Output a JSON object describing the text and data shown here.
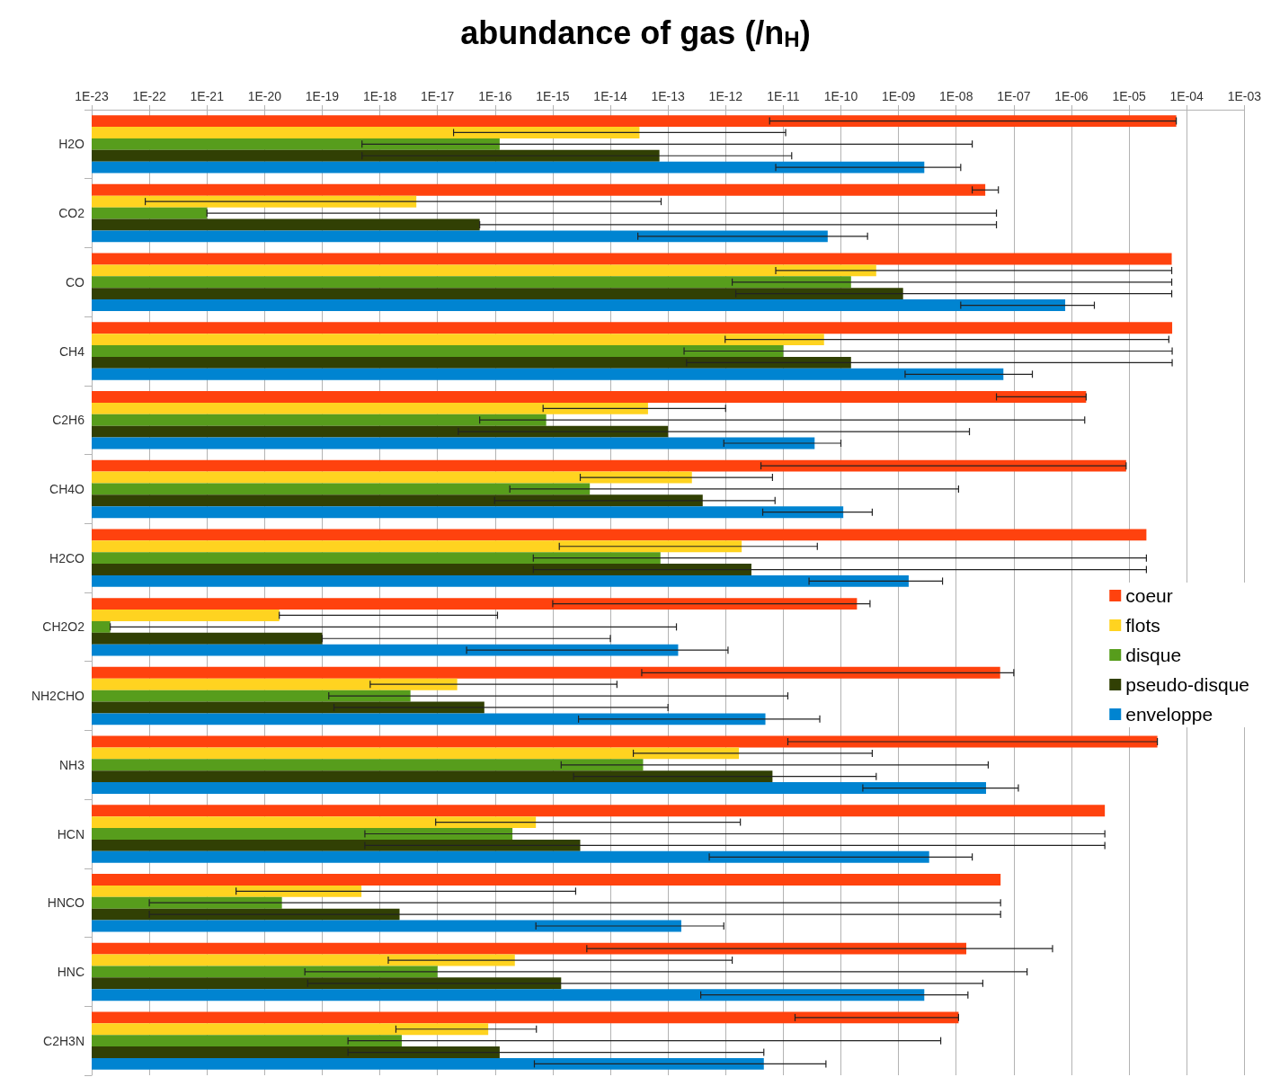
{
  "chart_data": {
    "type": "bar",
    "orientation": "horizontal",
    "title": "abundance of gas (/n$_{H}$)",
    "categories": [
      "H2O",
      "CO2",
      "CO",
      "CH4",
      "C2H6",
      "CH4O",
      "H2CO",
      "CH2O2",
      "NH2CHO",
      "NH3",
      "HCN",
      "HNCO",
      "HNC",
      "C2H3N"
    ],
    "log": "x",
    "grid": "x",
    "legend": "right",
    "xlim": [
      1e-23,
      0.001
    ],
    "xticks": [
      {
        "value": 1e-23,
        "label": "1E-23"
      },
      {
        "value": 1e-22,
        "label": "1E-22"
      },
      {
        "value": 1e-21,
        "label": "1E-21"
      },
      {
        "value": 1e-20,
        "label": "1E-20"
      },
      {
        "value": 1e-19,
        "label": "1E-19"
      },
      {
        "value": 1e-18,
        "label": "1E-18"
      },
      {
        "value": 1e-17,
        "label": "1E-17"
      },
      {
        "value": 1e-16,
        "label": "1E-16"
      },
      {
        "value": 1e-15,
        "label": "1E-15"
      },
      {
        "value": 1e-14,
        "label": "1E-14"
      },
      {
        "value": 1e-13,
        "label": "1E-13"
      },
      {
        "value": 1e-12,
        "label": "1E-12"
      },
      {
        "value": 1e-11,
        "label": "1E-11"
      },
      {
        "value": 1e-10,
        "label": "1E-10"
      },
      {
        "value": 1e-09,
        "label": "1E-09"
      },
      {
        "value": 1e-08,
        "label": "1E-08"
      },
      {
        "value": 1e-07,
        "label": "1E-07"
      },
      {
        "value": 1e-06,
        "label": "1E-06"
      },
      {
        "value": 1e-05,
        "label": "1E-05"
      },
      {
        "value": 0.0001,
        "label": "1E-04"
      },
      {
        "value": 0.001,
        "label": "1E-03"
      }
    ],
    "series": [
      {
        "name": "coeur",
        "color": "#ff420e",
        "values": [
          6.6e-05,
          3.2e-08,
          5.5e-05,
          5.6e-05,
          1.8e-06,
          8.9e-06,
          2e-05,
          1.9e-10,
          5.8e-08,
          3.1e-05,
          3.8e-06,
          5.9e-08,
          1.5e-08,
          1.1e-08
        ],
        "errors": [
          [
            5.8e-12,
            6.6e-05
          ],
          [
            1.9e-08,
            5.4e-08
          ],
          null,
          null,
          [
            5e-08,
            1.8e-06
          ],
          [
            4.1e-12,
            8.9e-06
          ],
          null,
          [
            1e-15,
            3.2e-10
          ],
          [
            3.5e-14,
            1e-07
          ],
          [
            1.2e-11,
            3.1e-05
          ],
          null,
          null,
          [
            3.9e-15,
            4.7e-07
          ],
          [
            1.6e-11,
            1.1e-08
          ]
        ]
      },
      {
        "name": "flots",
        "color": "#ffd320",
        "values": [
          3.2e-14,
          4.3e-18,
          4.1e-10,
          5.1e-11,
          4.5e-14,
          2.6e-13,
          1.9e-12,
          1.8e-20,
          2.2e-17,
          1.7e-12,
          5.1e-16,
          4.8e-19,
          2.2e-16,
          7.6e-17
        ],
        "errors": [
          [
            1.9e-17,
            1.1e-11
          ],
          [
            8.5e-23,
            7.6e-14
          ],
          [
            7.4e-12,
            5.5e-05
          ],
          [
            9.8e-13,
            4.9e-05
          ],
          [
            6.8e-16,
            1e-12
          ],
          [
            3e-15,
            6.5e-12
          ],
          [
            1.3e-15,
            3.9e-11
          ],
          [
            1.8e-20,
            1.1e-16
          ],
          [
            6.8e-19,
            1.3e-14
          ],
          [
            2.5e-14,
            3.5e-10
          ],
          [
            9.3e-18,
            1.8e-12
          ],
          [
            3.2e-21,
            2.5e-15
          ],
          [
            1.4e-18,
            1.3e-12
          ],
          [
            1.9e-18,
            5.2e-16
          ]
        ]
      },
      {
        "name": "disque",
        "color": "#579d1c",
        "values": [
          1.2e-16,
          1e-21,
          1.5e-10,
          1e-11,
          7.7e-16,
          4.4e-15,
          7.4e-14,
          2.1e-23,
          3.4e-18,
          3.7e-14,
          2e-16,
          2e-20,
          1e-17,
          2.4e-18
        ],
        "errors": [
          [
            4.9e-19,
            1.9e-08
          ],
          [
            1e-21,
            5e-08
          ],
          [
            1.3e-12,
            5.5e-05
          ],
          [
            1.9e-13,
            5.6e-05
          ],
          [
            5.4e-17,
            1.7e-06
          ],
          [
            1.8e-16,
            1.1e-08
          ],
          [
            4.6e-16,
            2e-05
          ],
          [
            2.1e-23,
            1.4e-13
          ],
          [
            1.3e-19,
            1.2e-11
          ],
          [
            1.4e-15,
            3.6e-08
          ],
          [
            5.5e-19,
            3.8e-06
          ],
          [
            1e-22,
            5.9e-08
          ],
          [
            5e-20,
            1.7e-07
          ],
          [
            2.8e-19,
            5.4e-09
          ]
        ]
      },
      {
        "name": "pseudo-disque",
        "color": "#314004",
        "values": [
          7.1e-14,
          5.4e-17,
          1.2e-09,
          1.5e-10,
          1e-13,
          4e-13,
          2.8e-12,
          1e-19,
          6.5e-17,
          6.5e-12,
          3e-15,
          2.2e-18,
          1.4e-15,
          1.2e-16
        ],
        "errors": [
          [
            4.9e-19,
            1.4e-11
          ],
          [
            5.4e-17,
            5e-08
          ],
          [
            1.5e-12,
            5.5e-05
          ],
          [
            2.1e-13,
            5.6e-05
          ],
          [
            2.3e-17,
            1.7e-08
          ],
          [
            9.8e-17,
            7.2e-12
          ],
          [
            4.6e-16,
            2e-05
          ],
          [
            1e-19,
            1e-14
          ],
          [
            1.6e-19,
            1e-13
          ],
          [
            2.3e-15,
            4.1e-10
          ],
          [
            5.5e-19,
            3.8e-06
          ],
          [
            1e-22,
            5.9e-08
          ],
          [
            5.6e-20,
            2.9e-08
          ],
          [
            2.8e-19,
            4.6e-12
          ]
        ]
      },
      {
        "name": "enveloppe",
        "color": "#0084d1",
        "values": [
          2.8e-09,
          5.9e-11,
          7.8e-07,
          6.6e-08,
          3.5e-11,
          1.1e-10,
          1.5e-09,
          1.5e-13,
          4.9e-12,
          3.3e-08,
          3.4e-09,
          1.7e-13,
          2.8e-09,
          4.6e-12
        ],
        "errors": [
          [
            7.4e-12,
            1.2e-08
          ],
          [
            3e-14,
            2.9e-10
          ],
          [
            1.2e-08,
            2.5e-06
          ],
          [
            1.3e-09,
            2.1e-07
          ],
          [
            9.3e-13,
            1e-10
          ],
          [
            4.4e-12,
            3.5e-10
          ],
          [
            2.8e-11,
            5.8e-09
          ],
          [
            3.2e-17,
            1.1e-12
          ],
          [
            2.8e-15,
            4.3e-11
          ],
          [
            2.4e-10,
            1.2e-07
          ],
          [
            5.2e-13,
            1.9e-08
          ],
          [
            5.1e-16,
            9.3e-13
          ],
          [
            3.7e-13,
            1.6e-08
          ],
          [
            4.8e-16,
            5.5e-11
          ]
        ]
      }
    ]
  }
}
